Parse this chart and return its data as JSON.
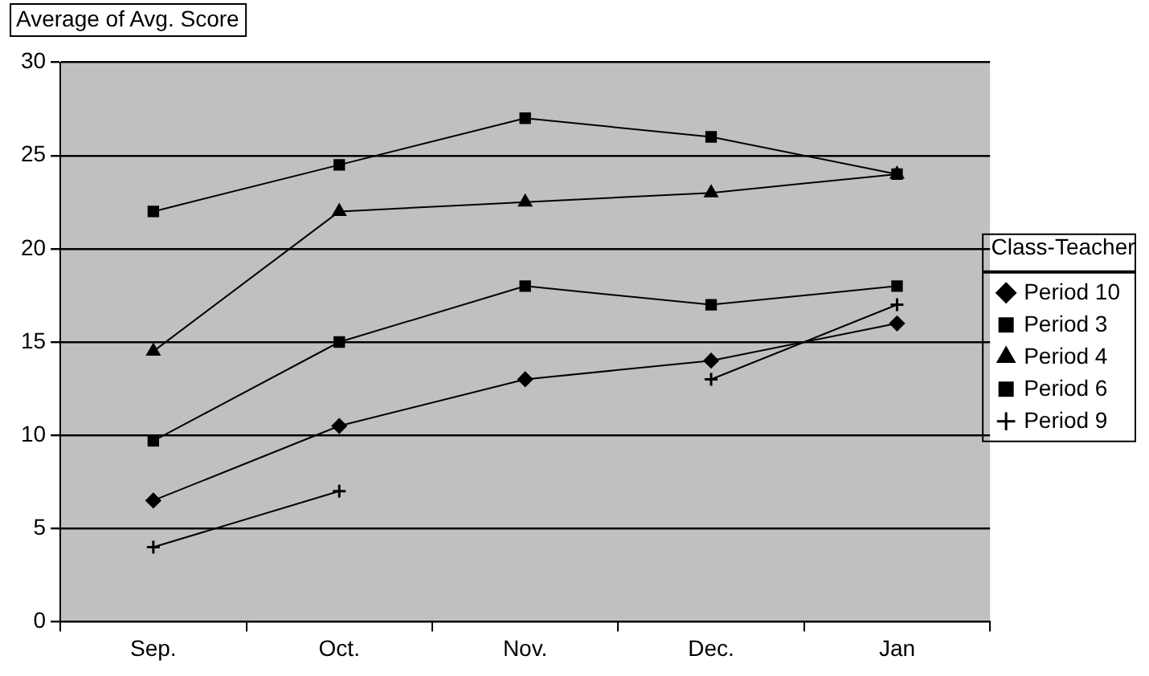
{
  "chart_data": {
    "type": "line",
    "title": "Average of Avg. Score",
    "legend_title": "Class-Teacher",
    "categories": [
      "Sep.",
      "Oct.",
      "Nov.",
      "Dec.",
      "Jan"
    ],
    "series": [
      {
        "name": "Period 10",
        "color": "#000000",
        "marker": "diamond",
        "values": [
          6.5,
          10.5,
          13,
          14,
          16
        ]
      },
      {
        "name": "Period 3",
        "color": "#000000",
        "marker": "square",
        "values": [
          22,
          24.5,
          27,
          26,
          24
        ]
      },
      {
        "name": "Period 4",
        "color": "#000000",
        "marker": "triangle",
        "values": [
          14.5,
          22,
          22.5,
          23,
          24
        ]
      },
      {
        "name": "Period 6",
        "color": "#000000",
        "marker": "square",
        "values": [
          9.7,
          15,
          18,
          17,
          18
        ]
      },
      {
        "name": "Period 9",
        "color": "#000000",
        "marker": "cross",
        "values": [
          4,
          7,
          null,
          13,
          17
        ]
      }
    ],
    "ylim": [
      0,
      30
    ],
    "yticks": [
      0,
      5,
      10,
      15,
      20,
      25,
      30
    ],
    "grid": "y",
    "legend": "right",
    "line_style": "solid"
  }
}
